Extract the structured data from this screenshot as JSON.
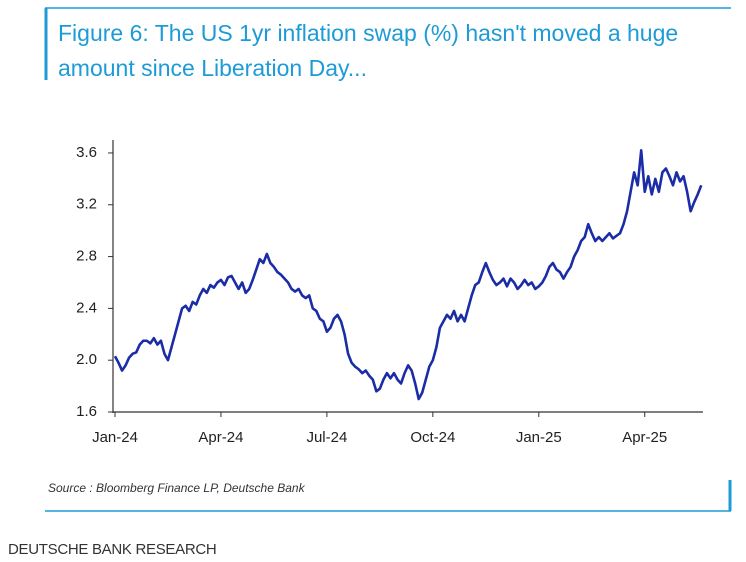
{
  "chart_data": {
    "type": "line",
    "title": "Figure 6: The US 1yr inflation swap (%) hasn't moved a huge amount since Liberation Day...",
    "source": "Source : Bloomberg Finance LP, Deutsche Bank",
    "x": [
      0,
      0.1,
      0.2,
      0.3,
      0.4,
      0.5,
      0.6,
      0.7,
      0.8,
      0.9,
      1,
      1.1,
      1.2,
      1.3,
      1.4,
      1.5,
      1.6,
      1.7,
      1.8,
      1.9,
      2,
      2.1,
      2.2,
      2.3,
      2.4,
      2.5,
      2.6,
      2.7,
      2.8,
      2.9,
      3,
      3.1,
      3.2,
      3.3,
      3.4,
      3.5,
      3.6,
      3.7,
      3.8,
      3.9,
      4,
      4.1,
      4.2,
      4.3,
      4.4,
      4.5,
      4.6,
      4.7,
      4.8,
      4.9,
      5,
      5.1,
      5.2,
      5.3,
      5.4,
      5.5,
      5.6,
      5.7,
      5.8,
      5.9,
      6,
      6.1,
      6.2,
      6.3,
      6.4,
      6.5,
      6.6,
      6.7,
      6.8,
      6.9,
      7,
      7.1,
      7.2,
      7.3,
      7.4,
      7.5,
      7.6,
      7.7,
      7.8,
      7.9,
      8,
      8.1,
      8.2,
      8.3,
      8.4,
      8.5,
      8.6,
      8.7,
      8.8,
      8.9,
      9,
      9.1,
      9.2,
      9.3,
      9.4,
      9.5,
      9.6,
      9.7,
      9.8,
      9.9,
      10,
      10.1,
      10.2,
      10.3,
      10.4,
      10.5,
      10.6,
      10.7,
      10.8,
      10.9,
      11,
      11.1,
      11.2,
      11.3,
      11.4,
      11.5,
      11.6,
      11.7,
      11.8,
      11.9,
      12,
      12.1,
      12.2,
      12.3,
      12.4,
      12.5,
      12.6,
      12.7,
      12.8,
      12.9,
      13,
      13.1,
      13.2,
      13.3,
      13.4,
      13.5,
      13.6,
      13.7,
      13.8,
      13.9,
      14,
      14.1,
      14.2,
      14.3,
      14.4,
      14.5,
      14.6,
      14.7,
      14.8,
      14.9,
      15,
      15.1,
      15.2,
      15.3,
      15.4,
      15.5,
      15.6,
      15.7,
      15.8,
      15.9,
      16,
      16.1,
      16.2,
      16.3,
      16.4,
      16.5,
      16.6
    ],
    "series": [
      {
        "color": "#1a2ca6",
        "values": [
          2.03,
          1.98,
          1.92,
          1.96,
          2.02,
          2.05,
          2.06,
          2.12,
          2.15,
          2.15,
          2.13,
          2.17,
          2.12,
          2.15,
          2.05,
          2.0,
          2.1,
          2.2,
          2.3,
          2.4,
          2.42,
          2.38,
          2.45,
          2.43,
          2.5,
          2.55,
          2.52,
          2.58,
          2.56,
          2.6,
          2.62,
          2.58,
          2.64,
          2.65,
          2.6,
          2.55,
          2.6,
          2.52,
          2.55,
          2.62,
          2.7,
          2.78,
          2.75,
          2.82,
          2.75,
          2.72,
          2.68,
          2.66,
          2.63,
          2.6,
          2.55,
          2.53,
          2.55,
          2.5,
          2.48,
          2.5,
          2.4,
          2.38,
          2.32,
          2.3,
          2.22,
          2.25,
          2.32,
          2.35,
          2.3,
          2.2,
          2.05,
          1.98,
          1.95,
          1.93,
          1.9,
          1.92,
          1.88,
          1.85,
          1.76,
          1.78,
          1.85,
          1.9,
          1.86,
          1.9,
          1.85,
          1.82,
          1.9,
          1.96,
          1.92,
          1.82,
          1.7,
          1.75,
          1.85,
          1.95,
          2.0,
          2.1,
          2.25,
          2.3,
          2.35,
          2.32,
          2.38,
          2.3,
          2.35,
          2.3,
          2.4,
          2.5,
          2.58,
          2.6,
          2.68,
          2.75,
          2.68,
          2.62,
          2.58,
          2.6,
          2.63,
          2.57,
          2.63,
          2.6,
          2.55,
          2.58,
          2.62,
          2.58,
          2.6,
          2.55,
          2.57,
          2.6,
          2.65,
          2.72,
          2.75,
          2.7,
          2.68,
          2.63,
          2.68,
          2.72,
          2.8,
          2.85,
          2.92,
          2.95,
          3.05,
          2.98,
          2.92,
          2.95,
          2.92,
          2.95,
          2.98,
          2.94,
          2.96,
          2.98,
          3.05,
          3.15,
          3.3,
          3.45,
          3.35,
          3.62,
          3.3,
          3.42,
          3.28,
          3.4,
          3.3,
          3.45,
          3.48,
          3.42,
          3.35,
          3.45,
          3.38,
          3.42,
          3.3,
          3.15,
          3.22,
          3.28,
          3.35
        ]
      }
    ],
    "xlim": [
      0,
      16.65
    ],
    "xticks": [
      {
        "value": 0,
        "label": "Jan-24"
      },
      {
        "value": 3,
        "label": "Apr-24"
      },
      {
        "value": 6,
        "label": "Jul-24"
      },
      {
        "value": 9,
        "label": "Oct-24"
      },
      {
        "value": 12,
        "label": "Jan-25"
      },
      {
        "value": 15,
        "label": "Apr-25"
      }
    ],
    "ylim": [
      1.6,
      3.7
    ],
    "yticks": [
      1.6,
      {
        "value": 2,
        "label": "2.0"
      },
      2.4,
      2.8,
      3.2,
      3.6
    ]
  },
  "footer": "DEUTSCHE BANK RESEARCH"
}
